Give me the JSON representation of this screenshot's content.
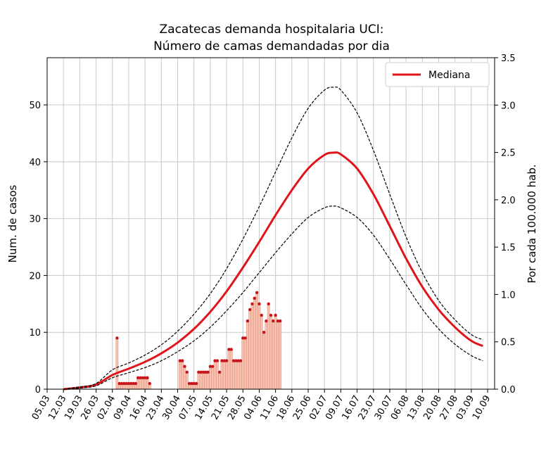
{
  "chart_data": {
    "type": "line",
    "title": "Zacatecas demanda hospitalaria UCI:",
    "subtitle": "Número de camas demandadas por dia",
    "ylabel": "Num. de casos",
    "ylabel_right": "Por cada 100.000 hab.",
    "ylim": [
      0,
      58.3
    ],
    "ylim_right": [
      0,
      3.5
    ],
    "yticks": [
      0,
      10,
      20,
      30,
      40,
      50
    ],
    "yticks_right": [
      "0.0",
      "0.5",
      "1.0",
      "1.5",
      "2.0",
      "2.5",
      "3.0",
      "3.5"
    ],
    "x_tick_labels": [
      "05.03",
      "12.03",
      "19.03",
      "26.03",
      "02.04",
      "09.04",
      "16.04",
      "23.04",
      "30.04",
      "07.05",
      "14.05",
      "21.05",
      "28.05",
      "04.06",
      "11.06",
      "18.06",
      "25.06",
      "02.07",
      "09.07",
      "16.07",
      "23.07",
      "30.07",
      "06.08",
      "13.08",
      "20.08",
      "27.08",
      "03.09",
      "10.09"
    ],
    "x_tick_days": [
      0,
      7,
      14,
      21,
      28,
      35,
      42,
      49,
      56,
      63,
      70,
      77,
      84,
      91,
      98,
      105,
      112,
      119,
      126,
      133,
      140,
      147,
      154,
      161,
      168,
      175,
      182,
      189
    ],
    "xlim": [
      0,
      192
    ],
    "grid": true,
    "legend": {
      "position": "top-right",
      "entries": [
        "Mediana"
      ]
    },
    "colors": {
      "median": "#e0151b",
      "bounds": "#000000",
      "bar_fill": "#f6c2b2",
      "bar_edge": "#e8957f",
      "marker": "#c9141b"
    },
    "series": [
      {
        "name": "Mediana",
        "style": "solid",
        "x": [
          7,
          14,
          21,
          28,
          35,
          42,
          49,
          56,
          63,
          70,
          77,
          84,
          91,
          98,
          105,
          112,
          119,
          123,
          126,
          133,
          140,
          147,
          154,
          161,
          168,
          175,
          182,
          187
        ],
        "y": [
          0,
          0.3,
          0.8,
          2.5,
          3.6,
          4.8,
          6.3,
          8.2,
          10.6,
          13.6,
          17.2,
          21.4,
          25.9,
          30.6,
          35.0,
          38.8,
          41.2,
          41.6,
          41.3,
          38.8,
          34.3,
          28.7,
          23.0,
          18.0,
          14.0,
          10.9,
          8.5,
          7.6
        ]
      },
      {
        "style": "dashed",
        "x": [
          7,
          14,
          21,
          28,
          35,
          42,
          49,
          56,
          63,
          70,
          77,
          84,
          91,
          98,
          105,
          112,
          119,
          123,
          126,
          133,
          140,
          147,
          154,
          161,
          168,
          175,
          182,
          187
        ],
        "y": [
          0,
          0.4,
          1.0,
          3.4,
          4.6,
          6.0,
          7.8,
          10.2,
          13.2,
          16.8,
          21.2,
          26.4,
          32.1,
          38.2,
          44.2,
          49.4,
          52.6,
          53.1,
          52.6,
          48.6,
          42.0,
          34.3,
          26.8,
          20.5,
          15.6,
          12.2,
          9.6,
          8.7
        ]
      },
      {
        "style": "dashed",
        "x": [
          7,
          14,
          21,
          28,
          35,
          42,
          49,
          56,
          63,
          70,
          77,
          84,
          91,
          98,
          105,
          112,
          119,
          123,
          126,
          133,
          140,
          147,
          154,
          161,
          168,
          175,
          182,
          187
        ],
        "y": [
          0,
          0.2,
          0.6,
          2.0,
          2.9,
          3.8,
          5.0,
          6.6,
          8.5,
          10.9,
          13.8,
          17.0,
          20.5,
          24.0,
          27.3,
          30.2,
          31.9,
          32.2,
          31.9,
          30.2,
          27.1,
          22.9,
          18.4,
          14.1,
          10.6,
          7.9,
          5.9,
          5.0
        ]
      }
    ],
    "observed": {
      "x": [
        30,
        31,
        32,
        33,
        34,
        35,
        36,
        37,
        38,
        39,
        40,
        41,
        42,
        43,
        44,
        57,
        58,
        59,
        60,
        61,
        62,
        63,
        64,
        65,
        66,
        67,
        68,
        69,
        70,
        71,
        72,
        73,
        74,
        75,
        76,
        77,
        78,
        79,
        80,
        81,
        82,
        83,
        84,
        85,
        86,
        87,
        88,
        89,
        90,
        91,
        92,
        93,
        94,
        95,
        96,
        97,
        98,
        99,
        100
      ],
      "y": [
        9,
        1,
        1,
        1,
        1,
        1,
        1,
        1,
        1,
        2,
        2,
        2,
        2,
        2,
        1,
        5,
        5,
        4,
        3,
        1,
        1,
        1,
        1,
        3,
        3,
        3,
        3,
        3,
        4,
        4,
        5,
        5,
        3,
        5,
        5,
        5,
        7,
        7,
        5,
        5,
        5,
        5,
        9,
        9,
        12,
        14,
        15,
        16,
        17,
        15,
        13,
        10,
        12,
        15,
        13,
        12,
        13,
        12,
        12
      ]
    }
  }
}
